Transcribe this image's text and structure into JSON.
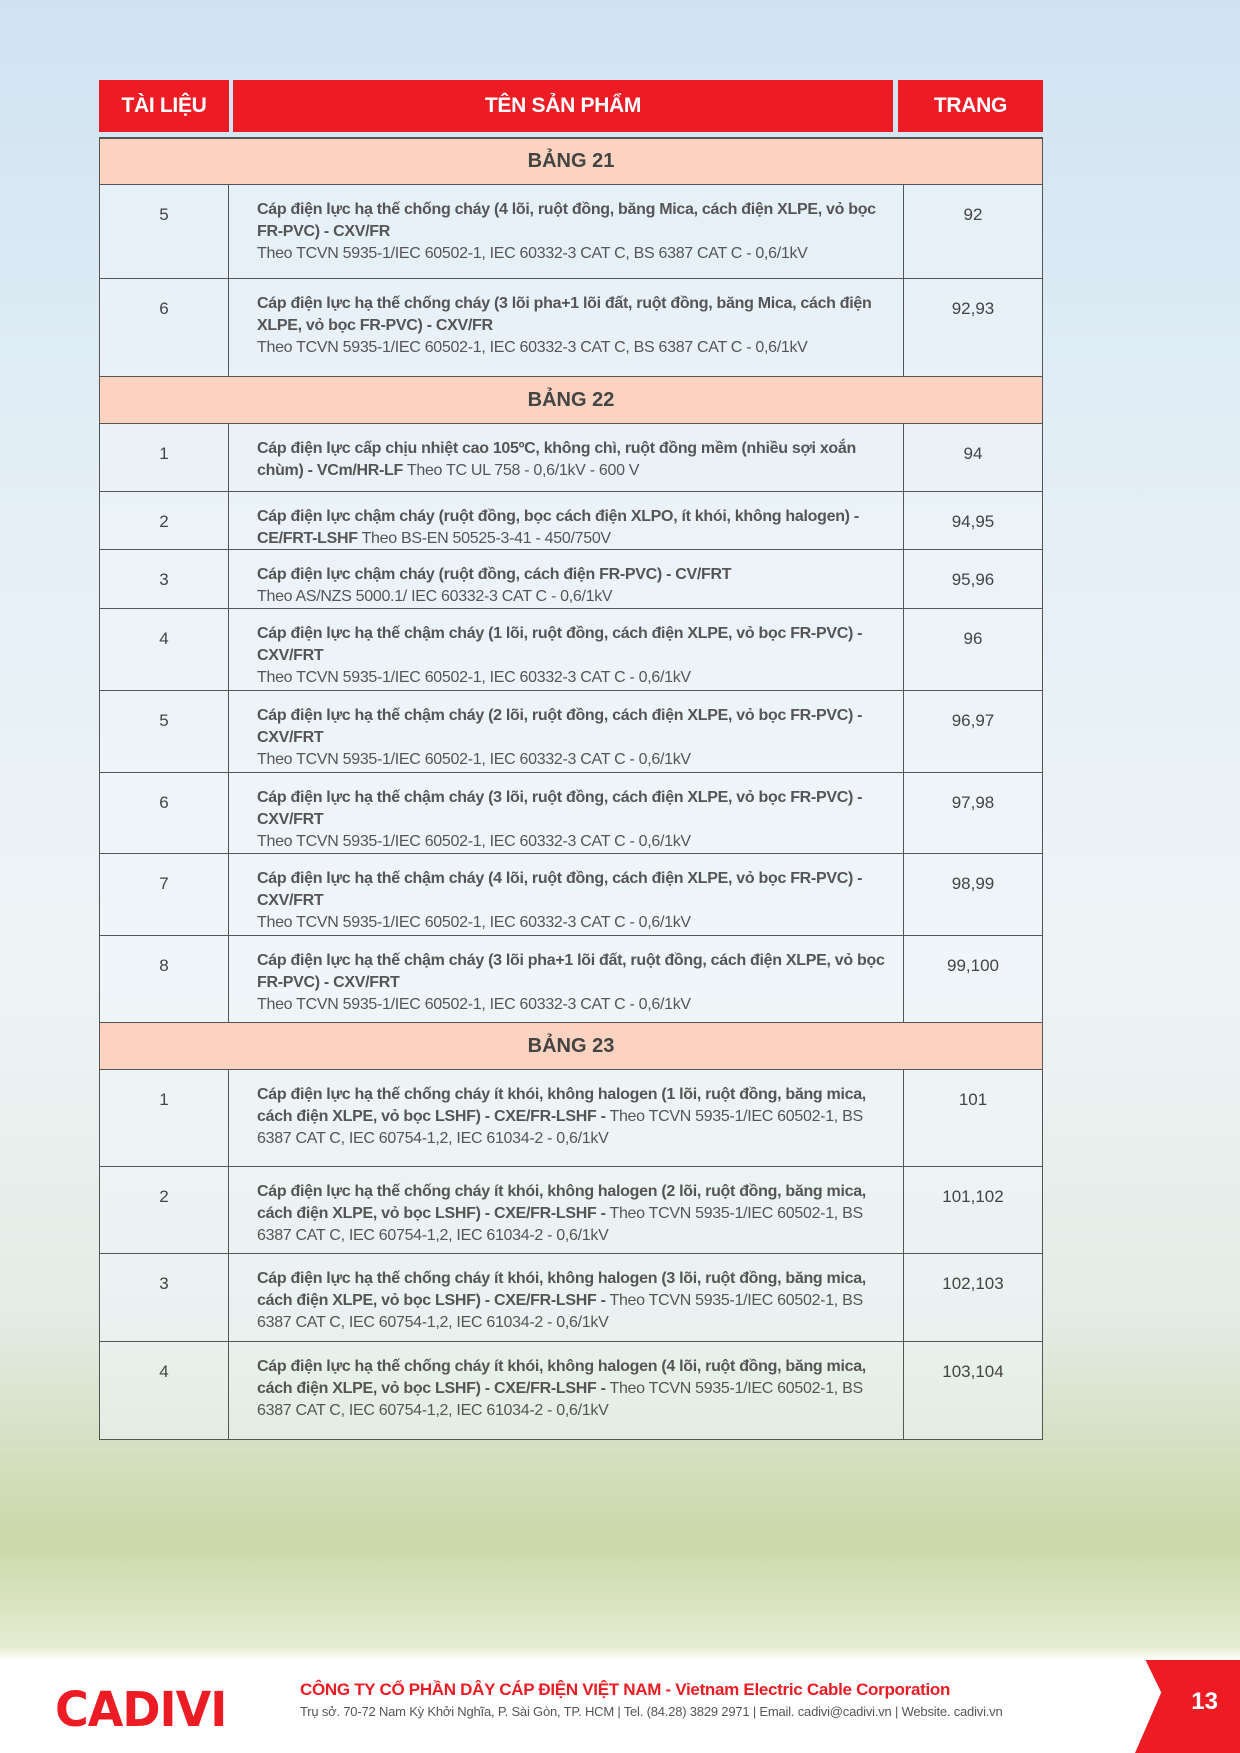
{
  "header": {
    "col_doc": "TÀI LIỆU",
    "col_name": "TÊN SẢN PHẨM",
    "col_page": "TRANG"
  },
  "sections": [
    {
      "title": "BẢNG 21",
      "rows": [
        {
          "no": "5",
          "name": "Cáp điện lực hạ thế chống cháy (4 lõi, ruột đồng, băng Mica, cách điện XLPE, vỏ bọc FR-PVC) - CXV/FR",
          "spec": "Theo TCVN 5935-1/IEC 60502-1, IEC 60332-3 CAT C, BS 6387 CAT C - 0,6/1kV",
          "page": "92"
        },
        {
          "no": "6",
          "name": "Cáp điện lực hạ thế chống cháy (3 lõi pha+1 lõi đất, ruột đồng, băng Mica, cách điện XLPE, vỏ bọc FR-PVC) - CXV/FR",
          "spec": "Theo TCVN 5935-1/IEC 60502-1, IEC 60332-3 CAT C, BS 6387 CAT C - 0,6/1kV",
          "page": "92,93"
        }
      ]
    },
    {
      "title": "BẢNG 22",
      "rows": [
        {
          "no": "1",
          "name": "Cáp điện lực cấp chịu nhiệt cao 105ºC, không chì, ruột đồng mềm (nhiều sợi xoắn chùm) - VCm/HR-LF",
          "spec": "Theo TC UL 758 - 0,6/1kV - 600 V",
          "page": "94"
        },
        {
          "no": "2",
          "name": "Cáp điện lực chậm cháy (ruột đồng, bọc cách điện XLPO, ít khói, không halogen) - CE/FRT-LSHF",
          "spec": "Theo BS-EN 50525-3-41 - 450/750V",
          "page": "94,95"
        },
        {
          "no": "3",
          "name": "Cáp điện lực chậm cháy (ruột đồng, cách điện FR-PVC) - CV/FRT",
          "spec": "Theo AS/NZS 5000.1/ IEC 60332-3 CAT C - 0,6/1kV",
          "page": "95,96"
        },
        {
          "no": "4",
          "name": "Cáp điện lực hạ thế chậm cháy (1 lõi, ruột đồng, cách điện XLPE, vỏ bọc FR-PVC) - CXV/FRT",
          "spec": "Theo TCVN 5935-1/IEC 60502-1, IEC 60332-3 CAT C - 0,6/1kV",
          "page": "96"
        },
        {
          "no": "5",
          "name": "Cáp điện lực hạ thế chậm cháy (2 lõi, ruột đồng, cách điện XLPE, vỏ bọc FR-PVC) - CXV/FRT",
          "spec": "Theo TCVN 5935-1/IEC 60502-1, IEC 60332-3 CAT C - 0,6/1kV",
          "page": "96,97"
        },
        {
          "no": "6",
          "name": "Cáp điện lực hạ thế chậm cháy (3 lõi, ruột đồng, cách điện XLPE, vỏ bọc FR-PVC) - CXV/FRT",
          "spec": "Theo TCVN 5935-1/IEC 60502-1, IEC 60332-3 CAT C - 0,6/1kV",
          "page": "97,98"
        },
        {
          "no": "7",
          "name": "Cáp điện lực hạ thế chậm cháy (4 lõi, ruột đồng, cách điện XLPE, vỏ bọc FR-PVC) - CXV/FRT",
          "spec": "Theo TCVN 5935-1/IEC 60502-1, IEC 60332-3 CAT C - 0,6/1kV",
          "page": "98,99"
        },
        {
          "no": "8",
          "name": "Cáp điện lực hạ thế chậm cháy (3 lõi pha+1 lõi đất, ruột đồng, cách điện XLPE, vỏ bọc FR-PVC) - CXV/FRT",
          "spec": "Theo TCVN 5935-1/IEC 60502-1, IEC 60332-3 CAT C - 0,6/1kV",
          "page": "99,100"
        }
      ]
    },
    {
      "title": "BẢNG 23",
      "rows": [
        {
          "no": "1",
          "name": "Cáp điện lực hạ thế chống cháy ít khói, không halogen (1 lõi, ruột đồng, băng mica, cách điện XLPE, vỏ bọc LSHF) - CXE/FR-LSHF -",
          "spec": "Theo TCVN 5935-1/IEC 60502-1, BS 6387 CAT C, IEC 60754-1,2,  IEC 61034-2 - 0,6/1kV",
          "page": "101"
        },
        {
          "no": "2",
          "name": "Cáp điện lực hạ thế chống cháy ít khói, không halogen (2 lõi, ruột đồng, băng mica, cách điện XLPE, vỏ bọc LSHF) - CXE/FR-LSHF -",
          "spec": "Theo TCVN 5935-1/IEC 60502-1, BS 6387 CAT C, IEC 60754-1,2,  IEC 61034-2 - 0,6/1kV",
          "page": "101,102"
        },
        {
          "no": "3",
          "name": "Cáp điện lực hạ thế chống cháy ít khói, không halogen (3 lõi, ruột đồng, băng mica, cách điện XLPE, vỏ bọc LSHF) - CXE/FR-LSHF -",
          "spec": "Theo TCVN 5935-1/IEC 60502-1, BS 6387 CAT C, IEC 60754-1,2,  IEC 61034-2 - 0,6/1kV",
          "page": "102,103"
        },
        {
          "no": "4",
          "name": "Cáp điện lực hạ thế chống cháy ít khói, không halogen (4 lõi, ruột đồng, băng mica, cách điện XLPE, vỏ bọc LSHF) - CXE/FR-LSHF -",
          "spec": "Theo TCVN 5935-1/IEC 60502-1, BS 6387 CAT C, IEC 60754-1,2,  IEC 61034-2 - 0,6/1kV",
          "page": "103,104"
        }
      ]
    }
  ],
  "footer": {
    "logo": "CADIVI",
    "company": "CÔNG TY CỔ PHẦN DÂY CÁP ĐIỆN VIỆT NAM - Vietnam Electric Cable Corporation",
    "address": "Trụ sở. 70-72 Nam Kỳ Khởi Nghĩa, P. Sài Gòn, TP. HCM | Tel. (84.28) 3829 2971 | Email. cadivi@cadivi.vn | Website. cadivi.vn",
    "page_number": "13"
  },
  "colors": {
    "brand_red": "#ed1c24",
    "section_band": "#fbd3c0"
  }
}
